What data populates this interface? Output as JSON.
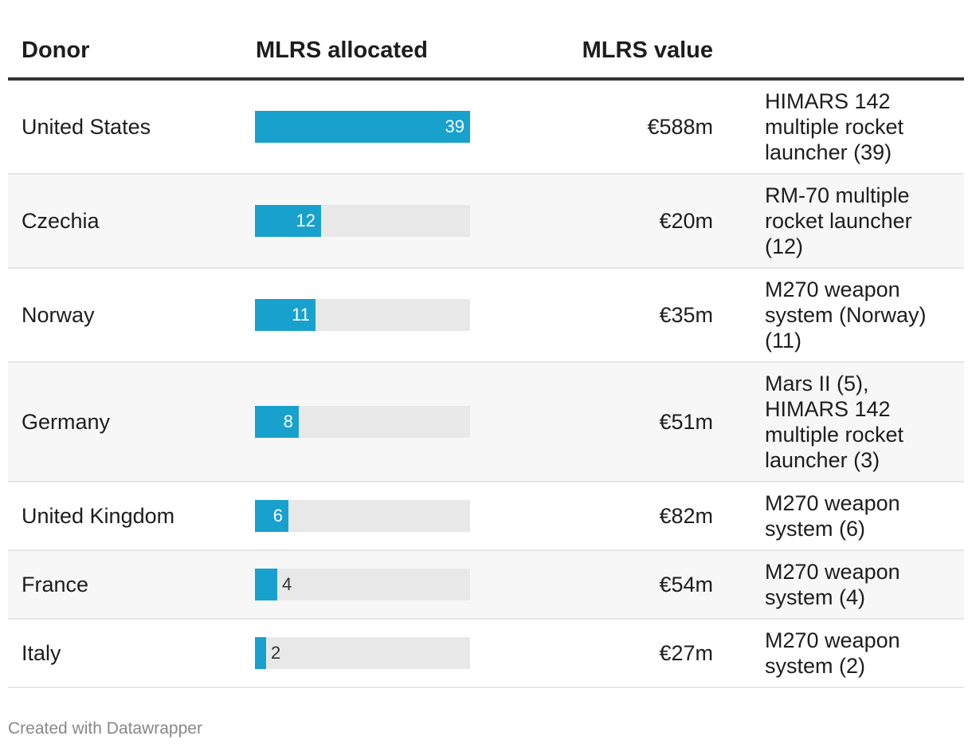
{
  "chart_data": {
    "type": "table",
    "columns": [
      "Donor",
      "MLRS allocated",
      "MLRS value",
      ""
    ],
    "bar_max": 39,
    "bar_color": "#18a1cd",
    "track_color": "#e8e8e8",
    "rows": [
      {
        "donor": "United States",
        "allocated": 39,
        "value": "€588m",
        "description": "HIMARS 142 multiple rocket launcher (39)"
      },
      {
        "donor": "Czechia",
        "allocated": 12,
        "value": "€20m",
        "description": "RM-70 multiple rocket launcher (12)"
      },
      {
        "donor": "Norway",
        "allocated": 11,
        "value": "€35m",
        "description": "M270 weapon system (Norway) (11)"
      },
      {
        "donor": "Germany",
        "allocated": 8,
        "value": "€51m",
        "description": "Mars II (5), HIMARS 142 multiple rocket launcher (3)"
      },
      {
        "donor": "United Kingdom",
        "allocated": 6,
        "value": "€82m",
        "description": "M270 weapon system (6)"
      },
      {
        "donor": "France",
        "allocated": 4,
        "value": "€54m",
        "description": "M270 weapon system (4)"
      },
      {
        "donor": "Italy",
        "allocated": 2,
        "value": "€27m",
        "description": "M270 weapon system (2)"
      }
    ]
  },
  "footer": "Created with Datawrapper"
}
